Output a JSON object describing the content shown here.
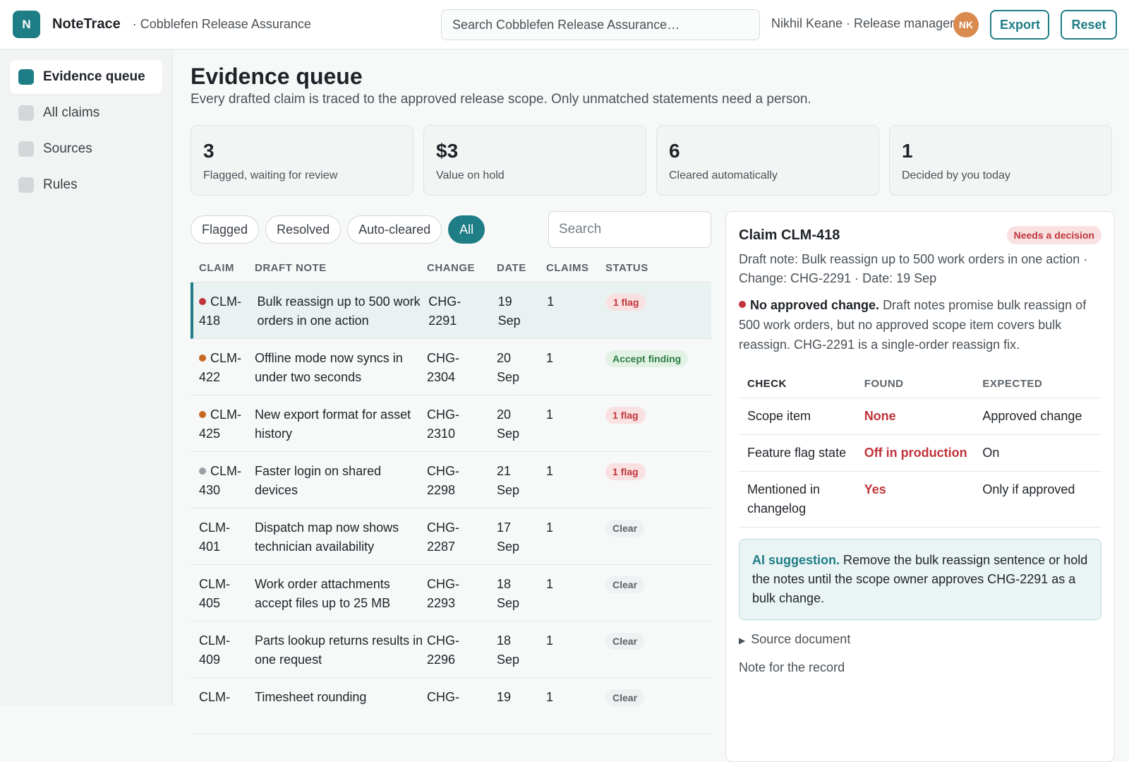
{
  "header": {
    "logo_letter": "N",
    "app_name": "NoteTrace",
    "workspace": "· Cobblefen Release Assurance",
    "search_placeholder": "Search Cobblefen Release Assurance…",
    "user": "Nikhil Keane · Release manager",
    "avatar_initials": "NK",
    "export_label": "Export",
    "reset_label": "Reset"
  },
  "sidebar": {
    "items": [
      {
        "label": "Evidence queue",
        "active": true
      },
      {
        "label": "All claims",
        "active": false
      },
      {
        "label": "Sources",
        "active": false
      },
      {
        "label": "Rules",
        "active": false
      }
    ]
  },
  "page": {
    "title": "Evidence queue",
    "subtitle": "Every drafted claim is traced to the approved release scope. Only unmatched statements need a person."
  },
  "stats": [
    {
      "value": "3",
      "label": "Flagged, waiting for review"
    },
    {
      "value": "$3",
      "label": "Value on hold"
    },
    {
      "value": "6",
      "label": "Cleared automatically"
    },
    {
      "value": "1",
      "label": "Decided by you today"
    }
  ],
  "filters": {
    "pills": [
      "Flagged",
      "Resolved",
      "Auto-cleared",
      "All"
    ],
    "active": "All",
    "search_placeholder": "Search"
  },
  "table": {
    "headers": {
      "claim": "CLAIM",
      "note": "DRAFT NOTE",
      "change": "CHANGE",
      "date": "DATE",
      "claims": "CLAIMS",
      "status": "STATUS"
    },
    "rows": [
      {
        "id": "CLM-418",
        "id_line1": "CLM-",
        "id_line2": "418",
        "dot": "#c0353b",
        "note": "Bulk reassign up to 500 work orders in one action",
        "change1": "CHG-",
        "change2": "2291",
        "date1": "19",
        "date2": "Sep",
        "claims": "1",
        "status": "1 flag",
        "status_kind": "flag",
        "selected": true
      },
      {
        "id": "CLM-422",
        "id_line1": "CLM-",
        "id_line2": "422",
        "dot": "#c96a24",
        "note": "Offline mode now syncs in under two seconds",
        "change1": "CHG-",
        "change2": "2304",
        "date1": "20",
        "date2": "Sep",
        "claims": "1",
        "status": "Accept finding",
        "status_kind": "accept"
      },
      {
        "id": "CLM-425",
        "id_line1": "CLM-",
        "id_line2": "425",
        "dot": "#c96a24",
        "note": "New export format for asset history",
        "change1": "CHG-",
        "change2": "2310",
        "date1": "20",
        "date2": "Sep",
        "claims": "1",
        "status": "1 flag",
        "status_kind": "flag"
      },
      {
        "id": "CLM-430",
        "id_line1": "CLM-",
        "id_line2": "430",
        "dot": "#9aa0a6",
        "note": "Faster login on shared devices",
        "change1": "CHG-",
        "change2": "2298",
        "date1": "21",
        "date2": "Sep",
        "claims": "1",
        "status": "1 flag",
        "status_kind": "flag"
      },
      {
        "id": "CLM-401",
        "id_line1": "CLM-",
        "id_line2": "401",
        "dot": "",
        "note": "Dispatch map now shows technician availability",
        "change1": "CHG-",
        "change2": "2287",
        "date1": "17",
        "date2": "Sep",
        "claims": "1",
        "status": "Clear",
        "status_kind": "clear"
      },
      {
        "id": "CLM-405",
        "id_line1": "CLM-",
        "id_line2": "405",
        "dot": "",
        "note": "Work order attachments accept files up to 25 MB",
        "change1": "CHG-",
        "change2": "2293",
        "date1": "18",
        "date2": "Sep",
        "claims": "1",
        "status": "Clear",
        "status_kind": "clear"
      },
      {
        "id": "CLM-409",
        "id_line1": "CLM-",
        "id_line2": "409",
        "dot": "",
        "note": "Parts lookup returns results in one request",
        "change1": "CHG-",
        "change2": "2296",
        "date1": "18",
        "date2": "Sep",
        "claims": "1",
        "status": "Clear",
        "status_kind": "clear"
      },
      {
        "id": "CLM-",
        "id_line1": "CLM-",
        "id_line2": "",
        "dot": "",
        "note": "Timesheet rounding",
        "change1": "CHG-",
        "change2": "",
        "date1": "19",
        "date2": "",
        "claims": "1",
        "status": "Clear",
        "status_kind": "clear"
      }
    ]
  },
  "detail": {
    "title": "Claim CLM-418",
    "badge": "Needs a decision",
    "meta": "Draft note: Bulk reassign up to 500 work orders in one action · Change: CHG-2291 · Date: 19 Sep",
    "finding_title": "No approved change.",
    "finding_text": "Draft notes promise bulk reassign of 500 work orders, but no approved scope item covers bulk reassign. CHG-2291 is a single-order reassign fix.",
    "checks_headers": {
      "check": "CHECK",
      "found": "FOUND",
      "expected": "EXPECTED"
    },
    "checks": [
      {
        "check": "Scope item",
        "found": "None",
        "expected": "Approved change"
      },
      {
        "check": "Feature flag state",
        "found": "Off in production",
        "expected": "On"
      },
      {
        "check": "Mentioned in changelog",
        "found": "Yes",
        "expected": "Only if approved"
      }
    ],
    "ai_label": "AI suggestion.",
    "ai_text": "Remove the bulk reassign sentence or hold the notes until the scope owner approves CHG-2291 as a bulk change.",
    "source_label": "Source document",
    "record_label": "Note for the record"
  }
}
